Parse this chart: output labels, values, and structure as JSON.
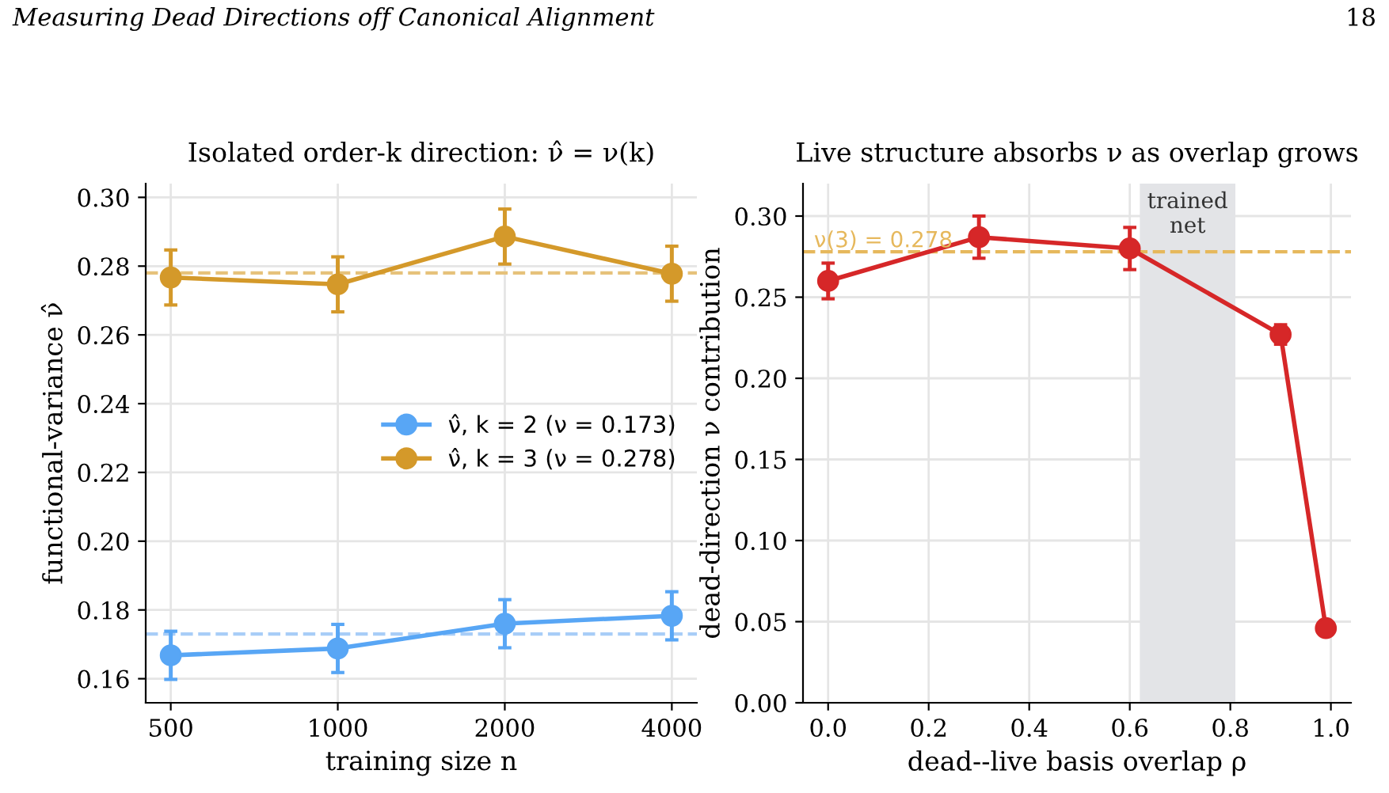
{
  "chart_data": [
    {
      "type": "line",
      "title": "Isolated order-k direction: ν̂ = ν(k)",
      "xlabel": "training size n",
      "ylabel": "functional-variance ν̂",
      "annotations": [
        "Measuring Dead Directions off Canonical Alignment",
        "18"
      ],
      "categories": [
        "500",
        "1000",
        "2000",
        "4000"
      ],
      "series": [
        {
          "name": "ν̂, k = 2 (ν = 0.173)",
          "color": "#58a6f5",
          "values": [
            0.1668,
            0.1688,
            0.176,
            0.1783
          ],
          "errors": [
            0.007,
            0.007,
            0.007,
            0.007
          ]
        },
        {
          "name": "ν̂, k = 3 (ν = 0.278)",
          "color": "#d4992a",
          "values": [
            0.2767,
            0.2747,
            0.2886,
            0.2778
          ],
          "errors": [
            0.008,
            0.008,
            0.008,
            0.008
          ]
        }
      ],
      "ref_lines": [
        {
          "axis": "y",
          "value": 0.173,
          "color": "#a8cdf7",
          "line_style": "dashed"
        },
        {
          "axis": "y",
          "value": 0.278,
          "color": "#e6c27a",
          "line_style": "dashed"
        }
      ],
      "ylim": [
        0.153,
        0.304
      ],
      "yticks": [
        0.16,
        0.18,
        {
          "value": 0.2,
          "label": "0.20"
        },
        0.22,
        0.24,
        0.26,
        0.28,
        {
          "value": 0.3,
          "label": "0.30"
        }
      ],
      "grid": true,
      "legend": "right",
      "marker": "circle",
      "line_style": "solid"
    },
    {
      "type": "line",
      "title": "Live structure absorbs ν as overlap grows",
      "xlabel": "dead--live basis overlap ρ",
      "ylabel": "dead-direction ν contribution",
      "x": [
        0.0,
        0.3,
        0.6,
        0.9,
        0.99
      ],
      "series": [
        {
          "color": "#d62728",
          "values": [
            0.26,
            0.287,
            0.28,
            0.227,
            0.046
          ],
          "errors": [
            0.011,
            0.013,
            0.013,
            0.006,
            null
          ]
        }
      ],
      "ref_lines": [
        {
          "axis": "y",
          "value": 0.278,
          "label": "ν(3) = 0.278",
          "color": "#e6b85c",
          "line_style": "dashed"
        }
      ],
      "bands": [
        {
          "axis": "x",
          "from": 0.62,
          "to": 0.81,
          "label": "trained\nnet",
          "color": "#e3e4e7"
        }
      ],
      "xlim": [
        -0.05,
        1.04
      ],
      "xticks": [
        {
          "value": 0,
          "label": "0.0"
        },
        0.2,
        0.4,
        0.6,
        0.8,
        {
          "value": 1,
          "label": "1.0"
        }
      ],
      "ylim": [
        0.0,
        0.32
      ],
      "yticks": [
        {
          "value": 0,
          "label": "0.00"
        },
        0.05,
        {
          "value": 0.1,
          "label": "0.10"
        },
        0.15,
        {
          "value": 0.2,
          "label": "0.20"
        },
        0.25,
        {
          "value": 0.3,
          "label": "0.30"
        }
      ],
      "grid": true,
      "marker": "circle",
      "line_style": "solid"
    }
  ]
}
